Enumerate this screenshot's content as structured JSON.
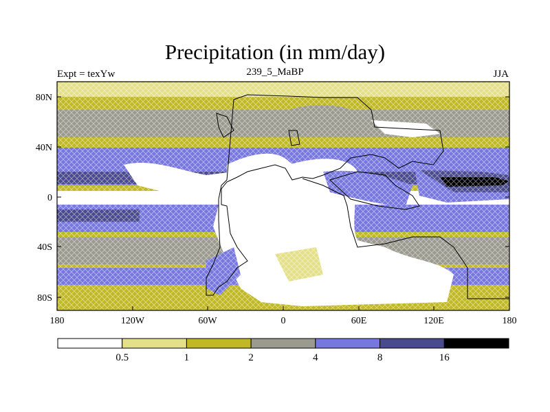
{
  "title": "Precipitation (in mm/day)",
  "left_label": "Expt = texYw",
  "center_label": "239_5_MaBP",
  "right_label": "JJA",
  "lat_ticks": [
    "80N",
    "40N",
    "0",
    "40S",
    "80S"
  ],
  "lon_ticks": [
    "180",
    "120W",
    "60W",
    "0",
    "60E",
    "120E",
    "180"
  ],
  "colorbar": {
    "levels": [
      "0.5",
      "1",
      "2",
      "4",
      "8",
      "16"
    ],
    "colors": [
      "#ffffff",
      "#e4e08a",
      "#c0b925",
      "#9a9a8e",
      "#7777e0",
      "#4a4a8e",
      "#000000"
    ]
  }
}
